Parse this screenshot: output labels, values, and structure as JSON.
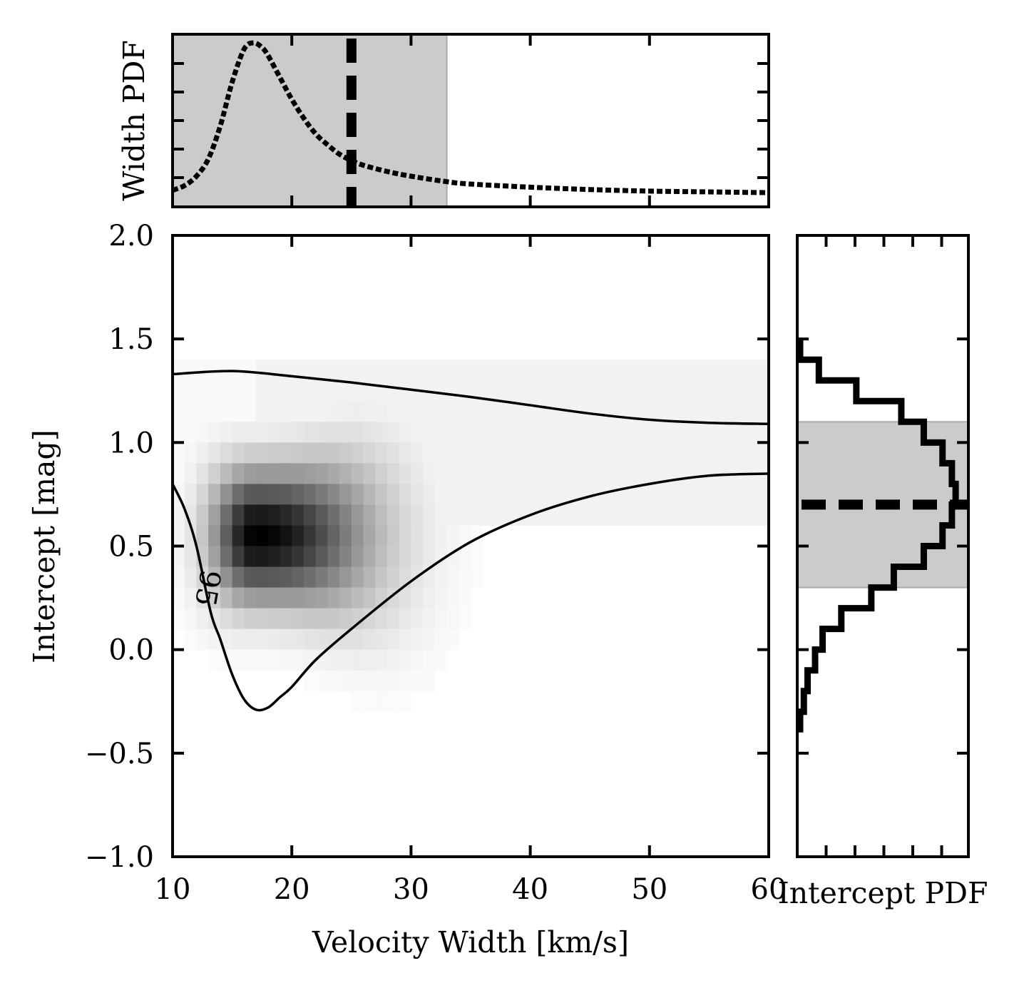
{
  "chart_data": [
    {
      "id": "joint",
      "type": "heatmap",
      "xlabel": "Velocity Width [km/s]",
      "ylabel": "Intercept [mag]",
      "xlim": [
        10,
        60
      ],
      "ylim": [
        -1.0,
        2.0
      ],
      "xticks": [
        10,
        20,
        30,
        40,
        50,
        60
      ],
      "xtick_labels": [
        "10",
        "20",
        "30",
        "40",
        "50",
        "60"
      ],
      "yticks": [
        -1.0,
        -0.5,
        0.0,
        0.5,
        1.0,
        1.5,
        2.0
      ],
      "ytick_labels": [
        "−1.0",
        "−0.5",
        "0.0",
        "0.5",
        "1.0",
        "1.5",
        "2.0"
      ],
      "density_peak": {
        "width": 17,
        "intercept": 0.55
      },
      "contour": {
        "level_label": "95",
        "upper": [
          [
            10,
            1.33
          ],
          [
            15,
            1.345
          ],
          [
            20,
            1.32
          ],
          [
            25,
            1.29
          ],
          [
            30,
            1.255
          ],
          [
            35,
            1.22
          ],
          [
            40,
            1.18
          ],
          [
            45,
            1.14
          ],
          [
            50,
            1.11
          ],
          [
            55,
            1.095
          ],
          [
            60,
            1.09
          ]
        ],
        "lower": [
          [
            10,
            0.8
          ],
          [
            11,
            0.68
          ],
          [
            12,
            0.5
          ],
          [
            13.2,
            0.18
          ],
          [
            14,
            0.05
          ],
          [
            15,
            -0.12
          ],
          [
            16,
            -0.24
          ],
          [
            17,
            -0.29
          ],
          [
            18,
            -0.28
          ],
          [
            19,
            -0.23
          ],
          [
            20,
            -0.18
          ],
          [
            22,
            -0.05
          ],
          [
            25,
            0.1
          ],
          [
            30,
            0.33
          ],
          [
            35,
            0.52
          ],
          [
            40,
            0.65
          ],
          [
            45,
            0.74
          ],
          [
            50,
            0.8
          ],
          [
            55,
            0.84
          ],
          [
            60,
            0.85
          ]
        ]
      }
    },
    {
      "id": "width_pdf",
      "type": "line",
      "ylabel": "Width PDF",
      "xlim": [
        10,
        60
      ],
      "shaded_interval": [
        10,
        33
      ],
      "reference_line_x": 25,
      "series": [
        {
          "x": [
            10,
            11,
            12,
            13,
            14,
            15,
            16,
            16.8,
            17.5,
            18,
            19,
            20,
            21,
            22,
            23,
            24,
            25,
            26,
            28,
            30,
            33,
            35,
            40,
            45,
            50,
            55,
            60
          ],
          "y": [
            0.06,
            0.09,
            0.15,
            0.26,
            0.47,
            0.75,
            0.96,
            1.0,
            0.97,
            0.92,
            0.78,
            0.64,
            0.52,
            0.42,
            0.35,
            0.29,
            0.25,
            0.22,
            0.18,
            0.15,
            0.115,
            0.1,
            0.08,
            0.065,
            0.055,
            0.05,
            0.045
          ]
        }
      ]
    },
    {
      "id": "intercept_pdf",
      "type": "line",
      "xlabel": "Intercept PDF",
      "ylim": [
        -1.0,
        2.0
      ],
      "shaded_interval": [
        0.3,
        1.1
      ],
      "reference_line_y": 0.7,
      "series": [
        {
          "step_bins": [
            -0.4,
            -0.3,
            -0.2,
            -0.1,
            0.0,
            0.1,
            0.2,
            0.3,
            0.4,
            0.5,
            0.6,
            0.7,
            0.8,
            0.9,
            1.0,
            1.1,
            1.2,
            1.3,
            1.4
          ],
          "values": [
            0.0,
            0.02,
            0.04,
            0.08,
            0.12,
            0.22,
            0.38,
            0.5,
            0.66,
            0.76,
            0.81,
            0.83,
            0.81,
            0.76,
            0.66,
            0.54,
            0.3,
            0.1,
            0.0
          ]
        }
      ]
    }
  ],
  "colors": {
    "shade": "#cbcbcb",
    "line": "#000000",
    "background": "#ffffff"
  }
}
